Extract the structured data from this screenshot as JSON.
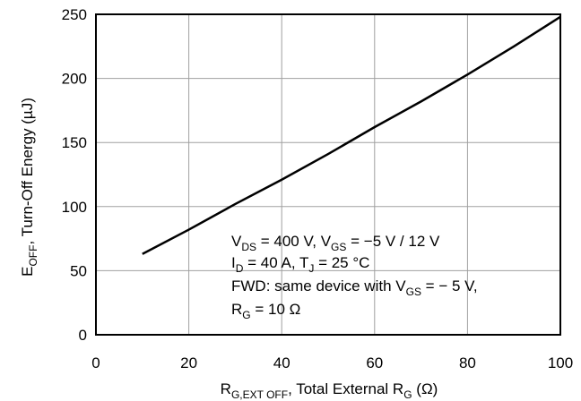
{
  "chart_data": {
    "type": "line",
    "xlim": [
      0,
      100
    ],
    "ylim": [
      0,
      250
    ],
    "x_ticks": [
      0,
      20,
      40,
      60,
      80,
      100
    ],
    "y_ticks": [
      0,
      50,
      100,
      150,
      200,
      250
    ],
    "grid": true,
    "xlabel": {
      "main": "R",
      "sub": "G,EXT OFF",
      "rest": ", Total External R",
      "sub2": "G",
      "tail": " (Ω)"
    },
    "ylabel": {
      "main": "E",
      "sub": "OFF",
      "rest": ", Turn-Off Energy (µJ)"
    },
    "series": [
      {
        "x": [
          10,
          20,
          30,
          40,
          50,
          60,
          70,
          80,
          90,
          100
        ],
        "y": [
          63,
          82,
          102,
          121,
          141,
          162,
          182,
          203,
          225,
          248
        ]
      }
    ],
    "annotation": {
      "line1": {
        "a": "V",
        "a_sub": "DS",
        "b": " = 400 V, V",
        "b_sub": "GS",
        "c": " = −5 V / 12 V"
      },
      "line2": {
        "a": "I",
        "a_sub": "D",
        "b": " = 40 A, T",
        "b_sub": "J",
        "c": " = 25 °C"
      },
      "line3": {
        "a": "FWD: same device with V",
        "a_sub": "GS",
        "b": " = − 5 V,"
      },
      "line4": {
        "a": "R",
        "a_sub": "G",
        "b": " = 10 Ω"
      }
    }
  }
}
